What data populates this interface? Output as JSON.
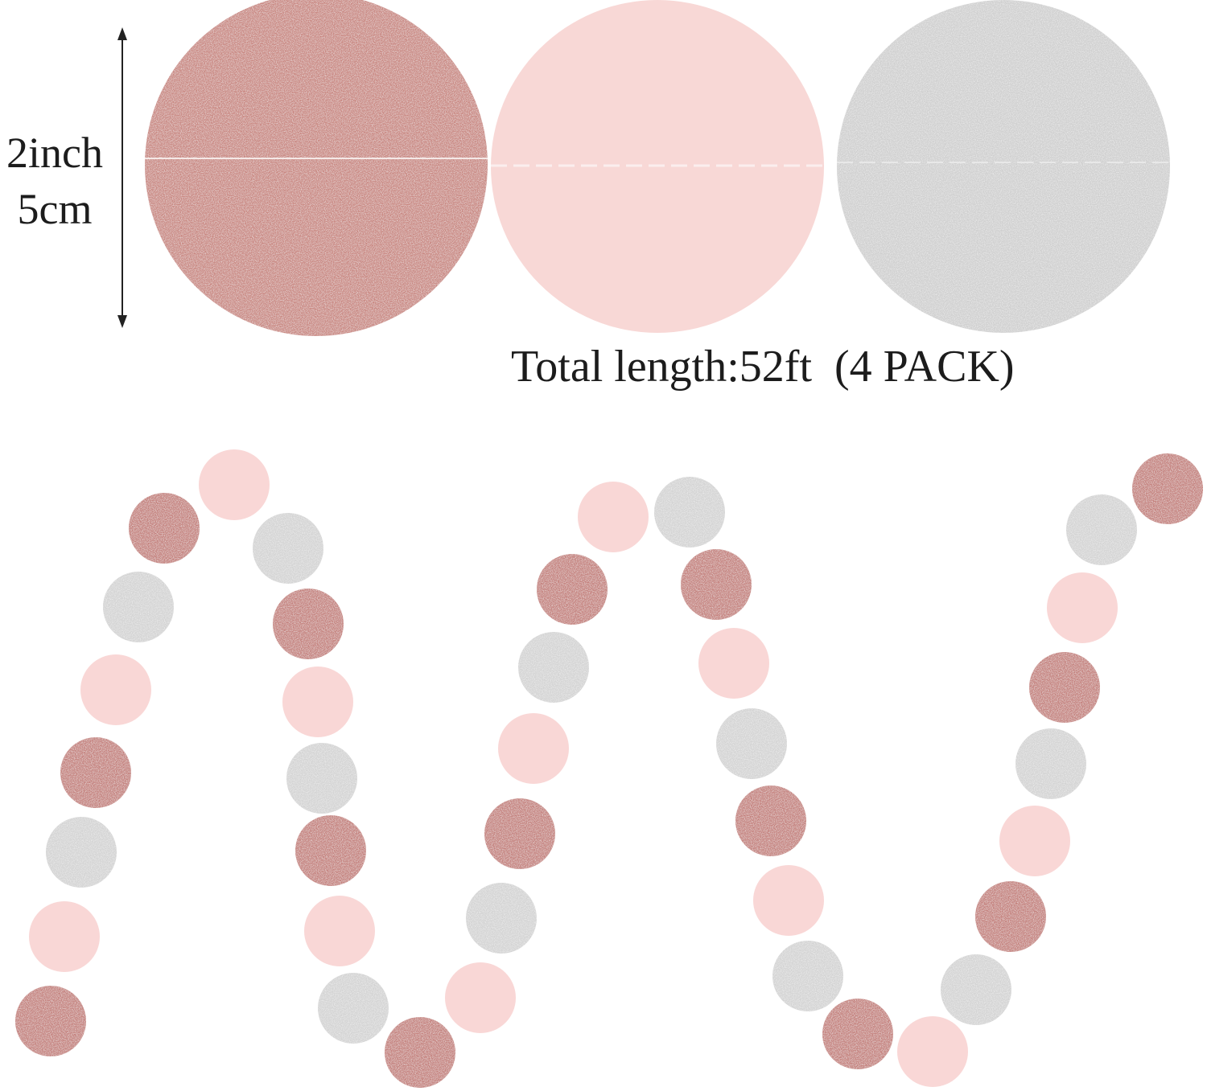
{
  "size_label": {
    "inches": "2inch",
    "centimeters": "5cm"
  },
  "caption": "Total length:52ft  (4 PACK)"
}
